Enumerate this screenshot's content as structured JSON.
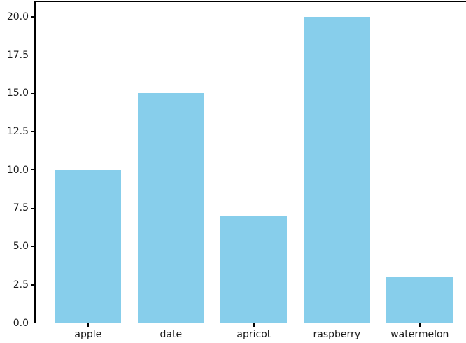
{
  "chart_data": {
    "type": "bar",
    "categories": [
      "apple",
      "date",
      "apricot",
      "raspberry",
      "watermelon"
    ],
    "values": [
      10,
      15,
      7,
      20,
      3
    ],
    "title": "",
    "xlabel": "",
    "ylabel": "",
    "ylim": [
      0,
      21
    ],
    "xlim": [
      -0.64,
      4.64
    ],
    "yticks": [
      0,
      2.5,
      5,
      7.5,
      10,
      12.5,
      15,
      17.5,
      20
    ],
    "ytick_labels": [
      "0.0",
      "2.5",
      "5.0",
      "7.5",
      "10.0",
      "12.5",
      "15.0",
      "17.5",
      "20.0"
    ],
    "bar_color": "#87CEEB",
    "background_color": "#ffffff",
    "spine_color": "#000000",
    "grid": false,
    "legend": null
  }
}
